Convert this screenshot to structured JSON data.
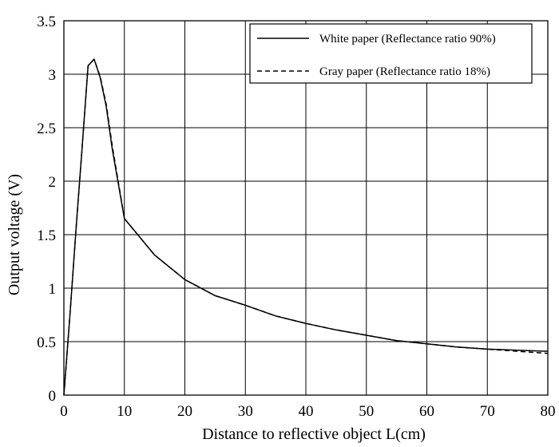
{
  "chart_data": {
    "type": "line",
    "title": "",
    "xlabel": "Distance to reflective object L(cm)",
    "ylabel": "Output voltage (V)",
    "xlim": [
      0,
      80
    ],
    "ylim": [
      0,
      3.5
    ],
    "xticks": [
      0,
      10,
      20,
      30,
      40,
      50,
      60,
      70,
      80
    ],
    "yticks": [
      0,
      0.5,
      1,
      1.5,
      2,
      2.5,
      3,
      3.5
    ],
    "xtick_labels": [
      "0",
      "10",
      "20",
      "30",
      "40",
      "50",
      "60",
      "70",
      "80"
    ],
    "ytick_labels": [
      "0",
      "0.5",
      "1",
      "1.5",
      "2",
      "2.5",
      "3",
      "3.5"
    ],
    "grid": true,
    "legend_position": "top-right",
    "series": [
      {
        "name": "White paper (Reflectance ratio 90%)",
        "style": "solid",
        "color": "#000000",
        "x": [
          0,
          1,
          2,
          3,
          4,
          5,
          6,
          7,
          8,
          10,
          15,
          20,
          25,
          30,
          35,
          40,
          45,
          50,
          55,
          60,
          65,
          70,
          75,
          80
        ],
        "y": [
          0,
          0.75,
          1.55,
          2.3,
          3.08,
          3.14,
          2.97,
          2.7,
          2.3,
          1.65,
          1.31,
          1.08,
          0.93,
          0.84,
          0.74,
          0.67,
          0.61,
          0.56,
          0.51,
          0.48,
          0.45,
          0.43,
          0.42,
          0.41
        ]
      },
      {
        "name": "Gray paper (Reflectance ratio 18%)",
        "style": "dashed",
        "color": "#000000",
        "x": [
          0,
          1,
          2,
          3,
          4,
          5,
          6,
          7,
          8,
          10,
          15,
          20,
          25,
          30,
          35,
          40,
          45,
          50,
          55,
          60,
          65,
          70,
          75,
          80
        ],
        "y": [
          0,
          0.75,
          1.55,
          2.3,
          3.08,
          3.14,
          2.98,
          2.72,
          2.33,
          1.65,
          1.31,
          1.08,
          0.93,
          0.84,
          0.74,
          0.67,
          0.61,
          0.56,
          0.51,
          0.48,
          0.45,
          0.43,
          0.41,
          0.39
        ]
      }
    ]
  }
}
